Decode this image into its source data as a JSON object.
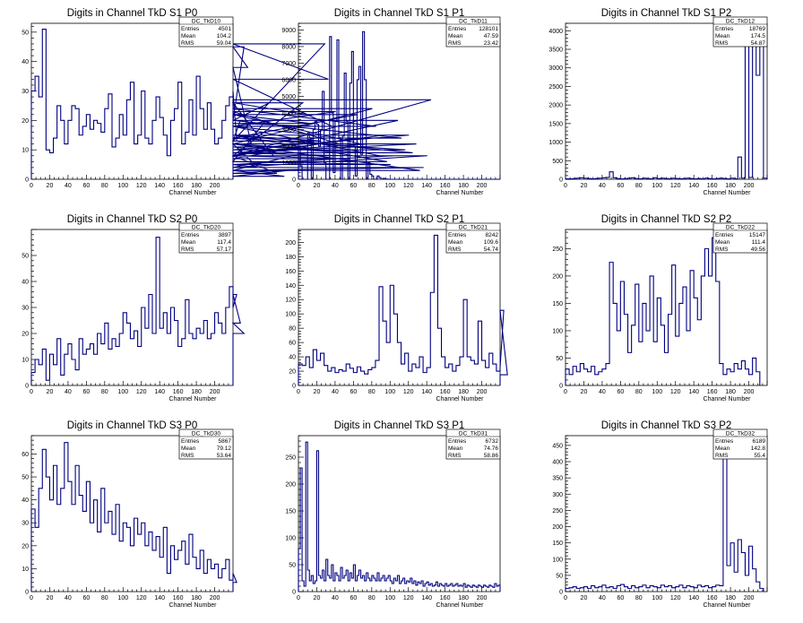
{
  "canvas_bg": "#ffffff",
  "line_color": "#000080",
  "axis_color": "#000000",
  "chart_data": [
    {
      "type": "histogram",
      "title": "Digits in Channel TkD S1 P0",
      "xlabel": "Channel Number",
      "ylabel": "",
      "xlim": [
        0,
        220
      ],
      "ylim": [
        0,
        53
      ],
      "xticks": [
        0,
        20,
        40,
        60,
        80,
        100,
        120,
        140,
        160,
        180,
        200
      ],
      "yticks": [
        0,
        10,
        20,
        30,
        40,
        50
      ],
      "stats": {
        "name": "DC_TkD10",
        "entries": "4501",
        "mean": "104.2",
        "rms": "59.04"
      },
      "bin_width": 4,
      "values": [
        30,
        35,
        28,
        51,
        10,
        9,
        14,
        25,
        20,
        12,
        20,
        25,
        24,
        15,
        18,
        22,
        17,
        20,
        19,
        16,
        24,
        29,
        11,
        14,
        22,
        15,
        27,
        33,
        12,
        15,
        30,
        14,
        12,
        20,
        28,
        21,
        15,
        8,
        20,
        24,
        33,
        12,
        16,
        27,
        15,
        35,
        24,
        17,
        26,
        17,
        12,
        14,
        20,
        25,
        28,
        30,
        13,
        20,
        45,
        38,
        12,
        5,
        4,
        6,
        20,
        26,
        8,
        2,
        3,
        1,
        3,
        8,
        11,
        8,
        26,
        22,
        19,
        18,
        15,
        13,
        46,
        34,
        18,
        23,
        12,
        9,
        8,
        7,
        14,
        22,
        12,
        9,
        12,
        24,
        18,
        8,
        15,
        6,
        5,
        8,
        20,
        14,
        10,
        15,
        9,
        12,
        3,
        4,
        8,
        27
      ]
    },
    {
      "type": "histogram",
      "title": "Digits in Channel TkD S1 P1",
      "xlabel": "Channel Number",
      "ylabel": "",
      "xlim": [
        0,
        220
      ],
      "ylim": [
        0,
        9400
      ],
      "xticks": [
        0,
        20,
        40,
        60,
        80,
        100,
        120,
        140,
        160,
        180,
        200
      ],
      "yticks": [
        0,
        1000,
        2000,
        3000,
        4000,
        5000,
        6000,
        7000,
        8000,
        9000
      ],
      "stats": {
        "name": "DC_TkD11",
        "entries": "128101",
        "mean": "47.59",
        "rms": "23.42"
      },
      "bin_width": 2,
      "values": [
        2000,
        800,
        0,
        0,
        0,
        2800,
        2500,
        0,
        3000,
        3500,
        3300,
        2000,
        3000,
        5300,
        1000,
        0,
        0,
        8600,
        4000,
        400,
        3500,
        8400,
        2500,
        0,
        2600,
        6400,
        3500,
        0,
        5800,
        7700,
        2000,
        200,
        6000,
        6800,
        1500,
        8900,
        6000,
        0,
        1000,
        300,
        200,
        0,
        0,
        200,
        100,
        0,
        50,
        20,
        10,
        0,
        0,
        0,
        0,
        0,
        0,
        0,
        0,
        0,
        0,
        0,
        0,
        0,
        0,
        0,
        0,
        0,
        0,
        0,
        0,
        0,
        0,
        0,
        0,
        0,
        0,
        0,
        0,
        0,
        0,
        0,
        0,
        0,
        0,
        0,
        0,
        0,
        0,
        0,
        0,
        0,
        0,
        0,
        0,
        0,
        0,
        0,
        0,
        0,
        0,
        0,
        0,
        0,
        0,
        0,
        0,
        0,
        0,
        0,
        0,
        0
      ]
    },
    {
      "type": "histogram",
      "title": "Digits in Channel TkD S1 P2",
      "xlabel": "Channel Number",
      "ylabel": "",
      "xlim": [
        0,
        220
      ],
      "ylim": [
        0,
        4200
      ],
      "xticks": [
        0,
        20,
        40,
        60,
        80,
        100,
        120,
        140,
        160,
        180,
        200
      ],
      "yticks": [
        0,
        500,
        1000,
        1500,
        2000,
        2500,
        3000,
        3500,
        4000
      ],
      "stats": {
        "name": "DC_TkD12",
        "entries": "18769",
        "mean": "174.5",
        "rms": "54.87"
      },
      "bin_width": 4,
      "values": [
        10,
        10,
        20,
        30,
        40,
        30,
        20,
        10,
        20,
        30,
        40,
        50,
        200,
        40,
        20,
        10,
        20,
        30,
        40,
        20,
        10,
        30,
        20,
        10,
        40,
        20,
        30,
        20,
        10,
        30,
        20,
        10,
        20,
        30,
        20,
        10,
        20,
        10,
        30,
        20,
        10,
        20,
        30,
        20,
        10,
        30,
        10,
        600,
        30,
        4200,
        50,
        3600,
        2800,
        3800,
        30
      ]
    },
    {
      "type": "histogram",
      "title": "Digits in Channel TkD S2 P0",
      "xlabel": "Channel Number",
      "ylabel": "",
      "xlim": [
        0,
        220
      ],
      "ylim": [
        0,
        60
      ],
      "xticks": [
        0,
        20,
        40,
        60,
        80,
        100,
        120,
        140,
        160,
        180,
        200
      ],
      "yticks": [
        0,
        10,
        20,
        30,
        40,
        50
      ],
      "stats": {
        "name": "DC_TkD20",
        "entries": "3897",
        "mean": "117.4",
        "rms": "57.17"
      },
      "bin_width": 4,
      "values": [
        5,
        10,
        8,
        14,
        2,
        12,
        8,
        18,
        4,
        12,
        16,
        10,
        6,
        18,
        12,
        14,
        16,
        12,
        20,
        16,
        24,
        14,
        18,
        15,
        20,
        28,
        24,
        18,
        21,
        15,
        30,
        22,
        35,
        20,
        57,
        22,
        28,
        20,
        30,
        25,
        15,
        18,
        33,
        20,
        18,
        22,
        20,
        25,
        18,
        20,
        28,
        24,
        20,
        30,
        38,
        30,
        35,
        24,
        20
      ]
    },
    {
      "type": "histogram",
      "title": "Digits in Channel TkD S2 P1",
      "xlabel": "Channel Number",
      "ylabel": "",
      "xlim": [
        0,
        220
      ],
      "ylim": [
        0,
        218
      ],
      "xticks": [
        0,
        20,
        40,
        60,
        80,
        100,
        120,
        140,
        160,
        180,
        200
      ],
      "yticks": [
        0,
        20,
        40,
        60,
        80,
        100,
        120,
        140,
        160,
        180,
        200
      ],
      "stats": {
        "name": "DC_TkD21",
        "entries": "8242",
        "mean": "109.6",
        "rms": "54.74"
      },
      "bin_width": 4,
      "values": [
        30,
        28,
        40,
        25,
        50,
        35,
        45,
        28,
        20,
        25,
        18,
        22,
        20,
        30,
        24,
        18,
        26,
        20,
        16,
        22,
        25,
        35,
        138,
        90,
        60,
        140,
        100,
        60,
        30,
        45,
        20,
        30,
        25,
        40,
        18,
        25,
        130,
        210,
        80,
        40,
        25,
        30,
        20,
        28,
        40,
        120,
        40,
        35,
        30,
        90,
        35,
        25,
        45,
        30,
        20,
        25,
        105,
        15
      ]
    },
    {
      "type": "histogram",
      "title": "Digits in Channel TkD S2 P2",
      "xlabel": "Channel Number",
      "ylabel": "",
      "xlim": [
        0,
        220
      ],
      "ylim": [
        0,
        285
      ],
      "xticks": [
        0,
        20,
        40,
        60,
        80,
        100,
        120,
        140,
        160,
        180,
        200
      ],
      "yticks": [
        0,
        50,
        100,
        150,
        200,
        250
      ],
      "stats": {
        "name": "DC_TkD22",
        "entries": "15147",
        "mean": "111.4",
        "rms": "49.56"
      },
      "bin_width": 4,
      "values": [
        30,
        20,
        35,
        25,
        40,
        30,
        25,
        35,
        20,
        25,
        30,
        40,
        225,
        150,
        100,
        190,
        130,
        60,
        110,
        185,
        80,
        150,
        100,
        200,
        80,
        160,
        110,
        60,
        130,
        220,
        90,
        150,
        180,
        100,
        210,
        160,
        120,
        200,
        250,
        200,
        270,
        190,
        40,
        20,
        30,
        25,
        40,
        30,
        45,
        30,
        20,
        50,
        25
      ]
    },
    {
      "type": "histogram",
      "title": "Digits in Channel TkD S3 P0",
      "xlabel": "Channel Number",
      "ylabel": "",
      "xlim": [
        0,
        220
      ],
      "ylim": [
        0,
        68
      ],
      "xticks": [
        0,
        20,
        40,
        60,
        80,
        100,
        120,
        140,
        160,
        180,
        200
      ],
      "yticks": [
        0,
        10,
        20,
        30,
        40,
        50,
        60
      ],
      "stats": {
        "name": "DC_TkD30",
        "entries": "5867",
        "mean": "79.12",
        "rms": "53.64"
      },
      "bin_width": 4,
      "values": [
        36,
        28,
        45,
        62,
        50,
        40,
        55,
        38,
        45,
        65,
        48,
        38,
        55,
        42,
        35,
        48,
        30,
        40,
        26,
        45,
        30,
        35,
        25,
        38,
        22,
        30,
        28,
        20,
        32,
        25,
        30,
        20,
        26,
        18,
        24,
        15,
        28,
        8,
        20,
        14,
        18,
        22,
        12,
        25,
        15,
        10,
        18,
        8,
        14,
        10,
        12,
        6,
        10,
        14,
        5,
        8,
        4
      ]
    },
    {
      "type": "histogram",
      "title": "Digits in Channel TkD S3 P1",
      "xlabel": "Channel Number",
      "ylabel": "",
      "xlim": [
        0,
        220
      ],
      "ylim": [
        0,
        290
      ],
      "xticks": [
        0,
        20,
        40,
        60,
        80,
        100,
        120,
        140,
        160,
        180,
        200
      ],
      "yticks": [
        0,
        50,
        100,
        150,
        200,
        250
      ],
      "stats": {
        "name": "DC_TkD31",
        "entries": "6732",
        "mean": "74.76",
        "rms": "58.86"
      },
      "bin_width": 2,
      "values": [
        80,
        230,
        20,
        10,
        278,
        40,
        20,
        30,
        15,
        20,
        262,
        30,
        25,
        40,
        20,
        60,
        30,
        25,
        50,
        20,
        35,
        30,
        20,
        45,
        25,
        30,
        40,
        20,
        35,
        25,
        50,
        20,
        30,
        40,
        25,
        30,
        20,
        35,
        25,
        20,
        30,
        25,
        20,
        35,
        20,
        25,
        30,
        20,
        25,
        30,
        20,
        15,
        25,
        20,
        30,
        15,
        20,
        25,
        15,
        20,
        18,
        25,
        15,
        20,
        12,
        18,
        15,
        20,
        10,
        15,
        18,
        12,
        15,
        10,
        12,
        18,
        10,
        15,
        12,
        10,
        15,
        10,
        12,
        15,
        10,
        12,
        15,
        10,
        12,
        10,
        15,
        8,
        12,
        10,
        8,
        12,
        10,
        8,
        12,
        10,
        8,
        12,
        10,
        8,
        12,
        10,
        8,
        15,
        10,
        12
      ]
    },
    {
      "type": "histogram",
      "title": "Digits in Channel TkD S3 P2",
      "xlabel": "Channel Number",
      "ylabel": "",
      "xlim": [
        0,
        220
      ],
      "ylim": [
        0,
        480
      ],
      "xticks": [
        0,
        20,
        40,
        60,
        80,
        100,
        120,
        140,
        160,
        180,
        200
      ],
      "yticks": [
        0,
        50,
        100,
        150,
        200,
        250,
        300,
        350,
        400,
        450
      ],
      "stats": {
        "name": "DC_TkD32",
        "entries": "6189",
        "mean": "142.8",
        "rms": "55.4"
      },
      "bin_width": 4,
      "values": [
        10,
        12,
        15,
        10,
        12,
        15,
        10,
        18,
        12,
        15,
        20,
        12,
        15,
        10,
        18,
        22,
        15,
        10,
        18,
        12,
        15,
        20,
        12,
        18,
        15,
        12,
        20,
        15,
        18,
        12,
        15,
        20,
        12,
        18,
        15,
        12,
        20,
        15,
        18,
        12,
        15,
        20,
        18,
        452,
        80,
        150,
        60,
        160,
        120,
        50,
        140,
        70,
        30,
        10
      ]
    }
  ]
}
